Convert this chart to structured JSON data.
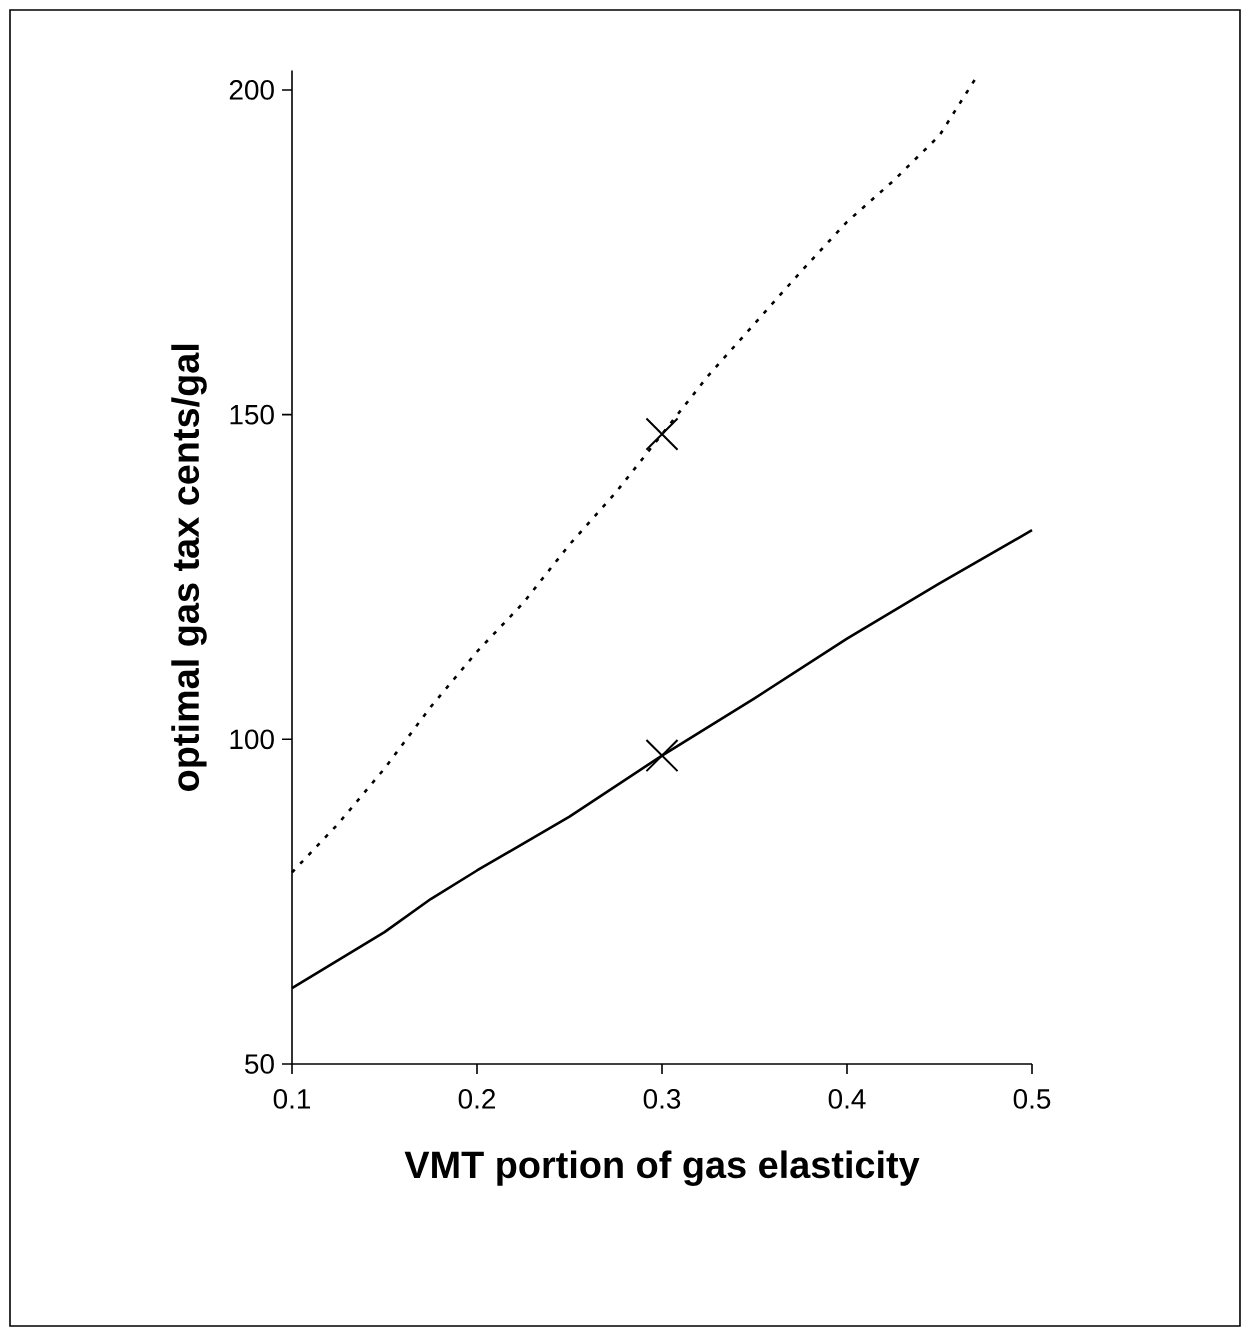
{
  "chart_data": {
    "type": "line",
    "xlabel": "VMT portion of gas elasticity",
    "ylabel": "optimal gas tax cents/gal",
    "xlim": [
      0.1,
      0.5
    ],
    "ylim": [
      50,
      203
    ],
    "xticks": [
      0.1,
      0.2,
      0.3,
      0.4,
      0.5
    ],
    "yticks": [
      50,
      100,
      150,
      200
    ],
    "series": [
      {
        "color": "#000000",
        "line_style": "dotted",
        "marker": "none",
        "x": [
          0.1,
          0.125,
          0.15,
          0.175,
          0.2,
          0.225,
          0.25,
          0.275,
          0.3,
          0.325,
          0.35,
          0.375,
          0.4,
          0.425,
          0.45,
          0.47
        ],
        "values": [
          79.5,
          87,
          95.5,
          105,
          113.5,
          121,
          130,
          138,
          147,
          156,
          164,
          172,
          179.7,
          186,
          193,
          202
        ]
      },
      {
        "color": "#000000",
        "line_style": "solid",
        "marker": "none",
        "x": [
          0.1,
          0.15,
          0.175,
          0.2,
          0.25,
          0.3,
          0.35,
          0.4,
          0.45,
          0.5
        ],
        "values": [
          61.7,
          70.3,
          75.4,
          79.8,
          88.1,
          97.5,
          106.3,
          115.5,
          124,
          132.2
        ]
      },
      {
        "type": "scatter",
        "color": "#000000",
        "marker": "cross",
        "x": [
          0.3,
          0.3
        ],
        "values": [
          147,
          97.5
        ]
      }
    ]
  }
}
